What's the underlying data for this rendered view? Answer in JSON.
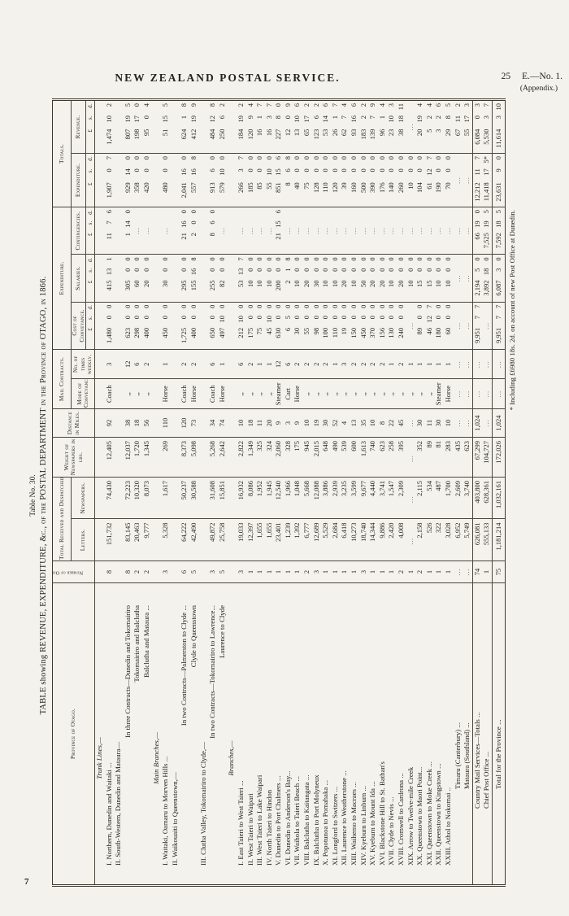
{
  "page": {
    "header_title": "NEW ZEALAND POSTAL SERVICE.",
    "page_number": "25",
    "doc_ref": "E.—No. 1.",
    "appendix": "(Appendix.)",
    "bottom_page_number": "7"
  },
  "table": {
    "table_no": "Table No. 30.",
    "title_prefix": "TABLE showing ",
    "title_body": "REVENUE, EXPENDITURE, &c., of the POSTAL DEPARTMENT in the Province of OTAGO, in 1866.",
    "footnote": "* Including £6980 18s. 2d. on account of new Post Office at Dunedin.",
    "headers": {
      "province": "Province of Otago.",
      "offices": "Number of Offices.",
      "received": "Total Received and Despatched.",
      "letters": "Letters.",
      "newspapers": "Newspapers.",
      "weight": "Weight of Newspapers in lbs.",
      "distance": "Distance in Miles.",
      "contracts": "Mail Contracts.",
      "mode": "Mode of Conveyance.",
      "times": "No. of times weekly.",
      "expenditure_group": "Expenditure.",
      "cost": "Cost of Conveyance.",
      "salaries": "Salaries.",
      "contingencies": "Contingencies.",
      "totals_group": "Totals.",
      "exp_total": "Expenditure.",
      "revenue": "Revenue.",
      "pound": "£",
      "shillings": "s.",
      "pence": "d."
    },
    "rows": [
      [
        "section",
        "Trunk Lines,—",
        "",
        "",
        "",
        "",
        "",
        "",
        "",
        "",
        "",
        "",
        "",
        ""
      ],
      [
        "num",
        "I. Northern, Dunedin and Waitaki ...",
        "8",
        "151,732",
        "74,430",
        "12,405",
        "92",
        "Coach",
        "3",
        "1,480 0 0",
        "415 13 1",
        "11 7 6",
        "1,907 0 7",
        "1,474 10 2"
      ],
      [
        "num",
        "II. South-Western, Dunedin and Mataura—",
        "",
        "",
        "",
        "",
        "",
        "",
        "",
        "",
        "",
        "",
        "",
        ""
      ],
      [
        "sub",
        "In three Contracts—Dunedin and Tokomairiro",
        "8",
        "83,145",
        "72,223",
        "12,037",
        "38",
        ",,",
        "12",
        "623 0 0",
        "305 0 0",
        "1 14 0",
        "929 14 0",
        "807 19 5"
      ],
      [
        "sub",
        "Tokomairiro and Balclutha",
        "2",
        "20,463",
        "10,320",
        "1,720",
        "18",
        ",,",
        "6",
        "298 0 0",
        "60 0 0",
        "…",
        "358 0 0",
        "198 17 0"
      ],
      [
        "sub",
        "Balclutha and Mataura ...",
        "2",
        "9,777",
        "8,073",
        "1,345",
        "56",
        ",,",
        "2",
        "400 0 0",
        "20 0 0",
        "…",
        "420 0 0",
        "95 0 4"
      ],
      [
        "section",
        "Main Branches,—",
        "",
        "",
        "",
        "",
        "",
        "",
        "",
        "",
        "",
        "",
        "",
        ""
      ],
      [
        "num",
        "I. Waitaki, Oamaru to Morven Hills ...",
        "3",
        "5,328",
        "1,617",
        "269",
        "110",
        "Horse",
        "1",
        "450 0 0",
        "30 0 0",
        "…",
        "480 0 0",
        "51 15 5"
      ],
      [
        "num",
        "II. Waikouaiti to Queenstown,—",
        "",
        "",
        "",
        "",
        "",
        "",
        "",
        "",
        "",
        "",
        "",
        ""
      ],
      [
        "sub",
        "In two Contracts—Palmerston to Clyde ...",
        "6",
        "64,222",
        "50,237",
        "8,373",
        "120",
        "Coach",
        "2",
        "1,725 0 0",
        "295 0 0",
        "21 16 0",
        "2,041 16 0",
        "624 1 8"
      ],
      [
        "sub",
        "Clyde to Queenstown",
        "5",
        "42,490",
        "30,588",
        "5,098",
        "73",
        "Horse",
        "2",
        "400 0 0",
        "155 16 8",
        "2 0 0",
        "557 16 8",
        "412 19 9"
      ],
      [
        "num",
        "III. Clutha Valley, Tokomairiro to Clyde,—",
        "",
        "",
        "",
        "",
        "",
        "",
        "",
        "",
        "",
        "",
        "",
        ""
      ],
      [
        "sub",
        "In two Contracts—Tokomairiro to Lawrence...",
        "3",
        "49,872",
        "31,608",
        "5,268",
        "34",
        "Coach",
        "6",
        "650 0 0",
        "255 0 0",
        "8 6 0",
        "913 6 0",
        "484 12 8"
      ],
      [
        "sub",
        "Laurence to Clyde",
        "5",
        "25,758",
        "15,851",
        "2,642",
        "74",
        "Horse",
        "1",
        "497 10 0",
        "82 0 0",
        "…",
        "579 10 0",
        "250 6 2"
      ],
      [
        "section",
        "Branches,—",
        "",
        "",
        "",
        "",
        "",
        "",
        "",
        "",
        "",
        "",
        "",
        ""
      ],
      [
        "num",
        "I. East Taieri to West Taieri ...",
        "3",
        "19,033",
        "16,932",
        "2,822",
        "10",
        ",,",
        "6",
        "212 10 0",
        "53 13 7",
        "…",
        "266 3 7",
        "184 19 2"
      ],
      [
        "num",
        "II. West Taieri to Waipari",
        "1",
        "12,397",
        "8,086",
        "1,349",
        "18",
        ",,",
        "2",
        "175 0 0",
        "10 0 0",
        "…",
        "185 0 0",
        "120 9 4"
      ],
      [
        "num",
        "III. West Taieri to Lake Waipari",
        "1",
        "1,655",
        "1,952",
        "325",
        "11",
        ",,",
        "1",
        "75 0 0",
        "10 0 0",
        "…",
        "85 0 0",
        "16 1 7"
      ],
      [
        "num",
        "IV. North Taieri to Hindon",
        "1",
        "1,655",
        "1,945",
        "324",
        "20",
        ",,",
        "1",
        "45 10 0",
        "10 0 0",
        "…",
        "55 10 0",
        "16 3 7"
      ],
      [
        "num",
        "V. Dunedin to Port Chalmers ...",
        "1",
        "23,401",
        "12,540",
        "2,060",
        "9",
        "Steamer",
        "12",
        "630 0 0",
        "200 0 0",
        "21 15 6",
        "851 15 6",
        "227 8 0"
      ],
      [
        "num",
        "VI. Dunedin to Anderson's Bay...",
        "1",
        "1,239",
        "1,966",
        "328",
        "3",
        "Cart",
        "6",
        "6 5 0",
        "2 1 8",
        "…",
        "8 6 8",
        "12 0 9"
      ],
      [
        "num",
        "VII. Waihola to Taieri Beach ...",
        "1",
        "1,392",
        "1,048",
        "175",
        "9",
        "Horse",
        "2",
        "30 0 0",
        "10 0 0",
        "…",
        "40 0 0",
        "13 10 6"
      ],
      [
        "num",
        "VIII. Balclutha to Kaitangata ...",
        "2",
        "6,777",
        "5,668",
        "945",
        "10",
        ",,",
        "2",
        "55 0 0",
        "20 0 0",
        "…",
        "75 0 0",
        "65 17 2"
      ],
      [
        "num",
        "IX. Balclutha to Port Molyneux",
        "3",
        "12,689",
        "12,088",
        "2,015",
        "19",
        ",,",
        "2",
        "98 0 0",
        "30 0 0",
        "…",
        "128 0 0",
        "123 6 2"
      ],
      [
        "num",
        "X. Popotunoa to Pomahaka ...",
        "1",
        "5,529",
        "3,886",
        "648",
        "30",
        ",,",
        "2",
        "100 0 0",
        "10 0 0",
        "…",
        "110 0 0",
        "53 14 6"
      ],
      [
        "num",
        "XI. Longford to Switzers ...",
        "1",
        "2,684",
        "2,939",
        "490",
        "52",
        ",,",
        "1",
        "110 0 0",
        "10 0 0",
        "…",
        "120 0 0",
        "26 1 7"
      ],
      [
        "num",
        "XII. Laurence to Weatherstone ...",
        "1",
        "6,418",
        "3,235",
        "539",
        "4",
        ",,",
        "3",
        "19 0 0",
        "20 0 0",
        "…",
        "39 0 0",
        "62 7 4"
      ],
      [
        "num",
        "XIII. Waihemo to Macraes ...",
        "1",
        "10,273",
        "3,599",
        "600",
        "13",
        ",,",
        "2",
        "150 0 0",
        "10 0 0",
        "…",
        "160 0 0",
        "93 16 6"
      ],
      [
        "num",
        "XIV. Kyeburn to Linburn ...",
        "3",
        "18,740",
        "9,677",
        "1,613",
        "35",
        ",,",
        "2",
        "450 0 0",
        "50 0 0",
        "…",
        "500 0 0",
        "183 2 2"
      ],
      [
        "num",
        "XV. Kyeburn to Mount Ida ...",
        "1",
        "14,344",
        "4,440",
        "740",
        "10",
        ",,",
        "2",
        "370 0 0",
        "20 0 0",
        "…",
        "390 0 0",
        "139 7 9"
      ],
      [
        "num",
        "XVI. Blackstone Hill to St. Bathan's",
        "1",
        "9,886",
        "3,741",
        "623",
        "8",
        ",,",
        "2",
        "156 0 0",
        "20 0 0",
        "…",
        "176 0 0",
        "96 1 4"
      ],
      [
        "num",
        "XVII. Clyde to Nevis ...",
        "1",
        "2,420",
        "1,547",
        "258",
        "22",
        ",,",
        "1",
        "130 0 0",
        "10 0 0",
        "…",
        "140 0 0",
        "23 10 3"
      ],
      [
        "num",
        "XVIII. Cromwell to Cardrona ...",
        "2",
        "4,008",
        "2,309",
        "395",
        "45",
        ",,",
        "2",
        "240 0 0",
        "20 0 0",
        "…",
        "260 0 0",
        "38 18 11"
      ],
      [
        "num",
        "XIX. Arrow to Twelve-mile Creek",
        "1",
        "…",
        "…",
        "…",
        "…",
        ",,",
        "1",
        "…",
        "10 0 0",
        "…",
        "10 0 0",
        "…"
      ],
      [
        "num",
        "XX. Queenstown to Maori Point...",
        "2",
        "2,158",
        "2,115",
        "352",
        "30",
        ",,",
        "1",
        "89 0 0",
        "15 0 0",
        "…",
        "104 0 0",
        "20 19 4"
      ],
      [
        "num",
        "XXI. Queenstown to Moke Creek ...",
        "1",
        "526",
        "534",
        "89",
        "11",
        ",,",
        "1",
        "46 12 7",
        "15 0 0",
        "…",
        "61 12 7",
        "5 2 4"
      ],
      [
        "num",
        "XXII. Queenstown to Kingstown ...",
        "1",
        "322",
        "487",
        "81",
        "30",
        "Steamer",
        "1",
        "180 0 0",
        "10 0 0",
        "…",
        "190 0 0",
        "3 2 6"
      ],
      [
        "num",
        "XXIII. Athol to Nokomai ..",
        "1",
        "3,028",
        "1,700",
        "283",
        "10",
        "Horse",
        "1",
        "60 0 0",
        "10 0 0",
        "…",
        "70 0 0",
        "29 8 5"
      ],
      [
        "plain",
        "Timaru (Canterbury) ...",
        "…",
        "6,952",
        "2,609",
        "435",
        "…",
        "…",
        "…",
        "…",
        "…",
        "…",
        "…",
        "67 11 2"
      ],
      [
        "plain",
        "Mataura (Southland) ...",
        "…",
        "5,749",
        "3,740",
        "623",
        "…",
        "…",
        "…",
        "…",
        "…",
        "…",
        "…",
        "55 17 3"
      ],
      [
        "totals",
        "Country Mail Services—Totals ...",
        "74",
        "626,081",
        "403,800",
        "67,299",
        "1,024",
        "…",
        "…",
        "9,951 7 7",
        "2,194 5 0",
        "66 19 0",
        "12,212 11 7",
        "6,084 0 3"
      ],
      [
        "totals2",
        "Chief Post Office ...",
        "1",
        "555,133",
        "628,361",
        "104,727",
        "…",
        "…",
        "…",
        "…",
        "3,892 18 0",
        "7,525 19 5",
        "11,418 17 5*",
        "5,530 3 7"
      ],
      [
        "grand",
        "Total for the Province ...",
        "75",
        "1,181,214",
        "1,032,161",
        "172,026",
        "1,024",
        "…",
        "…",
        "9,951 7 7",
        "6,087 3 0",
        "7,592 18 5",
        "23,631 9 0",
        "11,614 3 10"
      ]
    ]
  }
}
